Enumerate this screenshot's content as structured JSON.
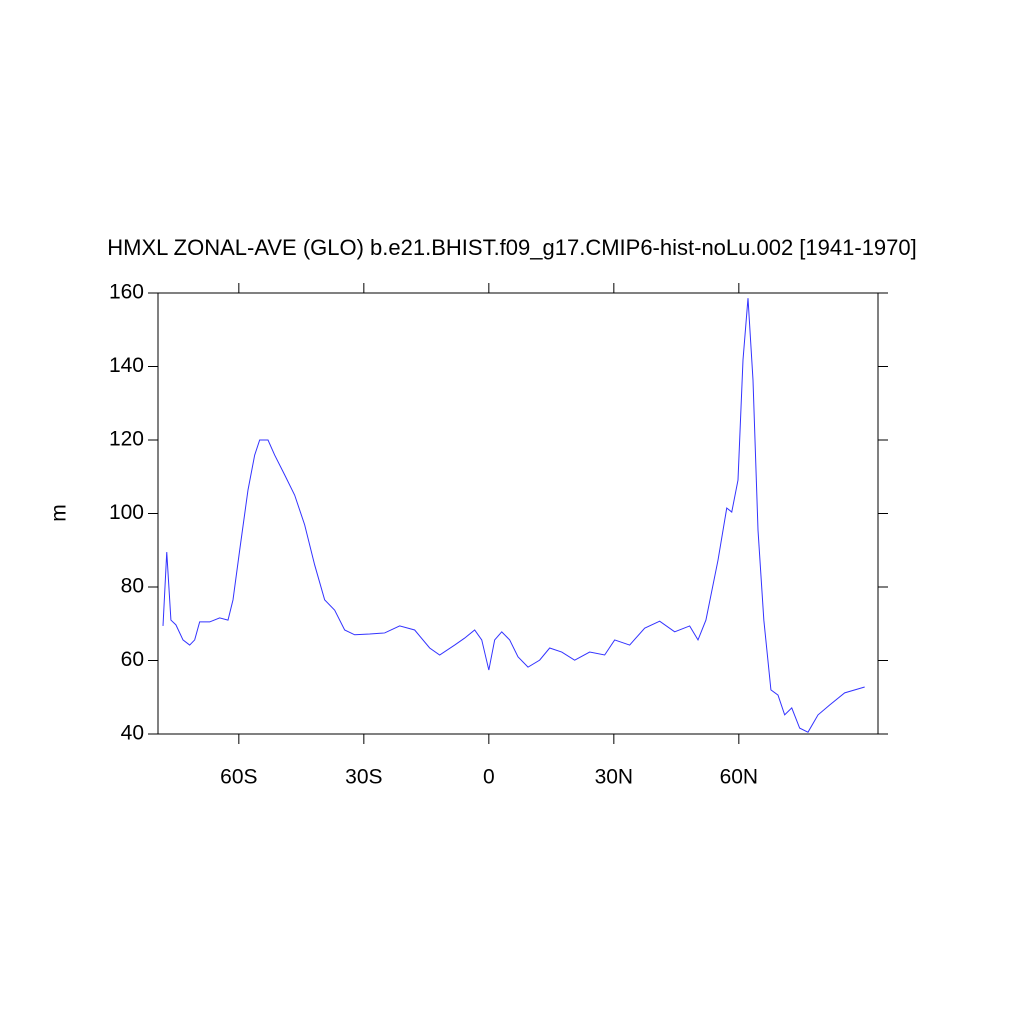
{
  "chart_data": {
    "type": "line",
    "title": "HMXL ZONAL-AVE (GLO) b.e21.BHIST.f09_g17.CMIP6-hist-noLu.002 [1941-1970]",
    "y_label": "m",
    "xlim": [
      -79.4,
      93.4
    ],
    "xticks": [
      {
        "value": -60,
        "label": "60S"
      },
      {
        "value": -30,
        "label": "30S"
      },
      0,
      {
        "value": 30,
        "label": "30N"
      },
      {
        "value": 60,
        "label": "60N"
      }
    ],
    "ylim": [
      40,
      160
    ],
    "yticks": [
      40,
      60,
      80,
      100,
      120,
      140,
      160
    ],
    "x": [
      -78.2,
      -77.3,
      -76.3,
      -75.1,
      -73.4,
      -71.8,
      -70.6,
      -69.4,
      -67,
      -64.6,
      -62.6,
      -61.4,
      -59.8,
      -57.8,
      -56.2,
      -55,
      -53,
      -51.4,
      -49,
      -46.6,
      -44.2,
      -41.8,
      -39.4,
      -37,
      -34.6,
      -32.2,
      -28.6,
      -25,
      -21.4,
      -17.8,
      -14.2,
      -11.8,
      -8.2,
      -5.8,
      -3.4,
      -1.7,
      0,
      1.4,
      3.1,
      5,
      7,
      9.4,
      12.2,
      14.6,
      17.5,
      20.6,
      24.2,
      27.8,
      30.2,
      33.8,
      37.4,
      41,
      44.6,
      48.2,
      50.2,
      52.1,
      55,
      57.1,
      58.3,
      59.8,
      61,
      62.2,
      63.4,
      64.6,
      66,
      67.7,
      69.4,
      71,
      72.7,
      74.6,
      76.6,
      79,
      81.8,
      85.4,
      90.2
    ],
    "series": [
      {
        "color": "#3333ff",
        "values": [
          69.4,
          89.5,
          71,
          69.7,
          65.6,
          64.2,
          65.6,
          70.5,
          70.5,
          71.6,
          71,
          76.5,
          90,
          106.4,
          115.9,
          120,
          120,
          115.9,
          110.5,
          105,
          96.9,
          86,
          76.5,
          73.7,
          68.3,
          67,
          67.2,
          67.5,
          69.4,
          68.3,
          63.4,
          61.5,
          64.2,
          66.1,
          68.3,
          65.6,
          57.4,
          65.6,
          67.8,
          65.6,
          61,
          58.2,
          60.1,
          63.4,
          62.3,
          60.1,
          62.3,
          61.5,
          65.6,
          64.2,
          68.8,
          70.7,
          67.8,
          69.4,
          65.6,
          71,
          87.3,
          101.5,
          100.4,
          109.1,
          141.8,
          158.6,
          136.3,
          95.5,
          71,
          52,
          50.6,
          45.2,
          47.1,
          41.6,
          40.5,
          45.2,
          47.9,
          51.2,
          52.8
        ]
      }
    ]
  }
}
